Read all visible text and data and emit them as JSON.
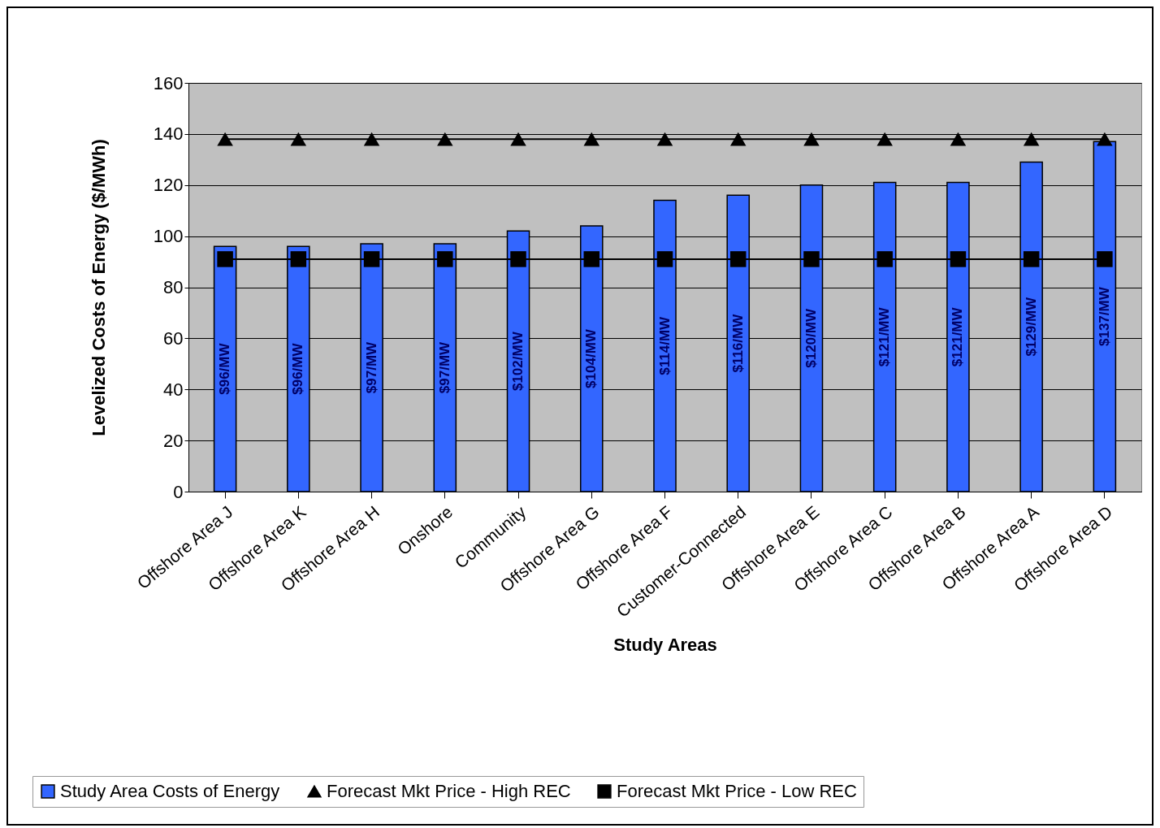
{
  "chart_data": {
    "type": "bar",
    "xlabel": "Study Areas",
    "ylabel": "Levelized Costs of Energy ($/MWh)",
    "categories": [
      "Offshore Area J",
      "Offshore Area K",
      "Offshore Area H",
      "Onshore",
      "Community",
      "Offshore Area G",
      "Offshore Area F",
      "Customer-Connected",
      "Offshore Area E",
      "Offshore Area C",
      "Offshore Area B",
      "Offshore Area A",
      "Offshore Area D"
    ],
    "series": [
      {
        "name": "Study Area Costs of Energy",
        "color": "#3366ff",
        "values": [
          96,
          96,
          97,
          97,
          102,
          104,
          114,
          116,
          120,
          121,
          121,
          129,
          137
        ],
        "value_labels": [
          "$96/MW",
          "$96/MW",
          "$97/MW",
          "$97/MW",
          "$102/MW",
          "$104/MW",
          "$114/MW",
          "$116/MW",
          "$120/MW",
          "$121/MW",
          "$121/MW",
          "$129/MW",
          "$137/MW"
        ]
      },
      {
        "name": "Forecast Mkt Price - High REC",
        "type": "line",
        "color": "#000000",
        "marker": "triangle",
        "values": [
          138,
          138,
          138,
          138,
          138,
          138,
          138,
          138,
          138,
          138,
          138,
          138,
          138
        ]
      },
      {
        "name": "Forecast Mkt Price - Low REC",
        "type": "line",
        "color": "#000000",
        "marker": "square",
        "values": [
          91,
          91,
          91,
          91,
          91,
          91,
          91,
          91,
          91,
          91,
          91,
          91,
          91
        ]
      }
    ],
    "ylim": [
      0,
      160
    ],
    "yticks": [
      0,
      20,
      40,
      60,
      80,
      100,
      120,
      140,
      160
    ],
    "grid": "y",
    "legend": "bottom"
  }
}
